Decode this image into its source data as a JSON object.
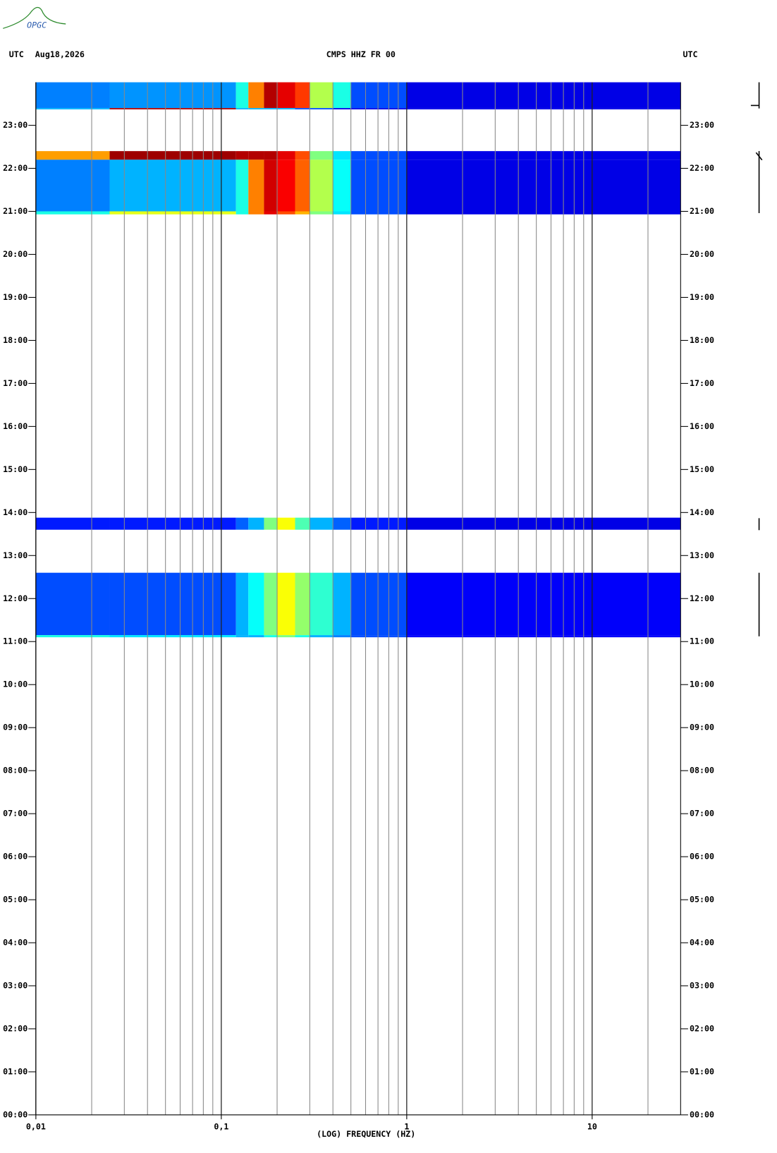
{
  "chart_data": {
    "type": "spectrogram",
    "logo": "OPGC",
    "title": "CMPS HHZ FR 00",
    "date": "Aug18,2026",
    "left_label": "UTC",
    "right_label": "UTC",
    "x_label": "(LOG) FREQUENCY (HZ)",
    "xscale": "log",
    "xlim": [
      0.01,
      30
    ],
    "xticks": [
      {
        "value": 0.01,
        "label": "0,01"
      },
      {
        "value": 0.1,
        "label": "0,1"
      },
      1,
      10
    ],
    "xgrid": [
      0.02,
      0.03,
      0.04,
      0.05,
      0.06,
      0.07,
      0.08,
      0.09,
      0.2,
      0.3,
      0.4,
      0.5,
      0.6,
      0.7,
      0.8,
      0.9,
      2,
      3,
      4,
      5,
      6,
      7,
      8,
      9,
      20
    ],
    "ylim": [
      0,
      24
    ],
    "yticks": [
      {
        "value": 0,
        "label": "00:00"
      },
      {
        "value": 1,
        "label": "01:00"
      },
      {
        "value": 2,
        "label": "02:00"
      },
      {
        "value": 3,
        "label": "03:00"
      },
      {
        "value": 4,
        "label": "04:00"
      },
      {
        "value": 5,
        "label": "05:00"
      },
      {
        "value": 6,
        "label": "06:00"
      },
      {
        "value": 7,
        "label": "07:00"
      },
      {
        "value": 8,
        "label": "08:00"
      },
      {
        "value": 9,
        "label": "09:00"
      },
      {
        "value": 10,
        "label": "10:00"
      },
      {
        "value": 11,
        "label": "11:00"
      },
      {
        "value": 12,
        "label": "12:00"
      },
      {
        "value": 13,
        "label": "13:00"
      },
      {
        "value": 14,
        "label": "14:00"
      },
      {
        "value": 15,
        "label": "15:00"
      },
      {
        "value": 16,
        "label": "16:00"
      },
      {
        "value": 17,
        "label": "17:00"
      },
      {
        "value": 18,
        "label": "18:00"
      },
      {
        "value": 19,
        "label": "19:00"
      },
      {
        "value": 20,
        "label": "20:00"
      },
      {
        "value": 21,
        "label": "21:00"
      },
      {
        "value": 22,
        "label": "22:00"
      },
      {
        "value": 23,
        "label": "23:00"
      }
    ],
    "bins": [
      0.01,
      0.025,
      0.12,
      0.14,
      0.17,
      0.2,
      0.25,
      0.3,
      0.4,
      0.5,
      1,
      30
    ],
    "rows": [
      {
        "t": [
          23.4,
          24
        ],
        "values": [
          0.25,
          0.27,
          0.4,
          0.75,
          0.95,
          0.9,
          0.82,
          0.55,
          0.4,
          0.2,
          0.1
        ]
      },
      {
        "t": [
          23.37,
          23.4
        ],
        "values": [
          0.3,
          0.95,
          0.3,
          0.3,
          0.3,
          0.3,
          0.2,
          0.2,
          0.1,
          0.1,
          0.1
        ]
      },
      {
        "t": [
          22.2,
          22.4
        ],
        "values": [
          0.72,
          0.97,
          0.95,
          0.95,
          0.95,
          0.9,
          0.8,
          0.5,
          0.35,
          0.2,
          0.1
        ]
      },
      {
        "t": [
          21.0,
          22.2
        ],
        "values": [
          0.25,
          0.3,
          0.4,
          0.75,
          0.92,
          0.88,
          0.78,
          0.55,
          0.38,
          0.2,
          0.1
        ]
      },
      {
        "t": [
          20.93,
          21.0
        ],
        "values": [
          0.4,
          0.6,
          0.4,
          0.75,
          0.9,
          0.8,
          0.7,
          0.5,
          0.35,
          0.2,
          0.1
        ]
      },
      {
        "t": [
          13.6,
          13.88
        ],
        "values": [
          0.15,
          0.15,
          0.22,
          0.3,
          0.5,
          0.62,
          0.45,
          0.3,
          0.22,
          0.15,
          0.1
        ]
      },
      {
        "t": [
          11.15,
          12.6
        ],
        "values": [
          0.2,
          0.2,
          0.3,
          0.38,
          0.5,
          0.62,
          0.52,
          0.42,
          0.3,
          0.2,
          0.12
        ]
      },
      {
        "t": [
          11.1,
          11.15
        ],
        "values": [
          0.4,
          0.35,
          0.3,
          0.3,
          0.4,
          0.5,
          0.4,
          0.3,
          0.25,
          0.2,
          0.12
        ]
      }
    ]
  }
}
